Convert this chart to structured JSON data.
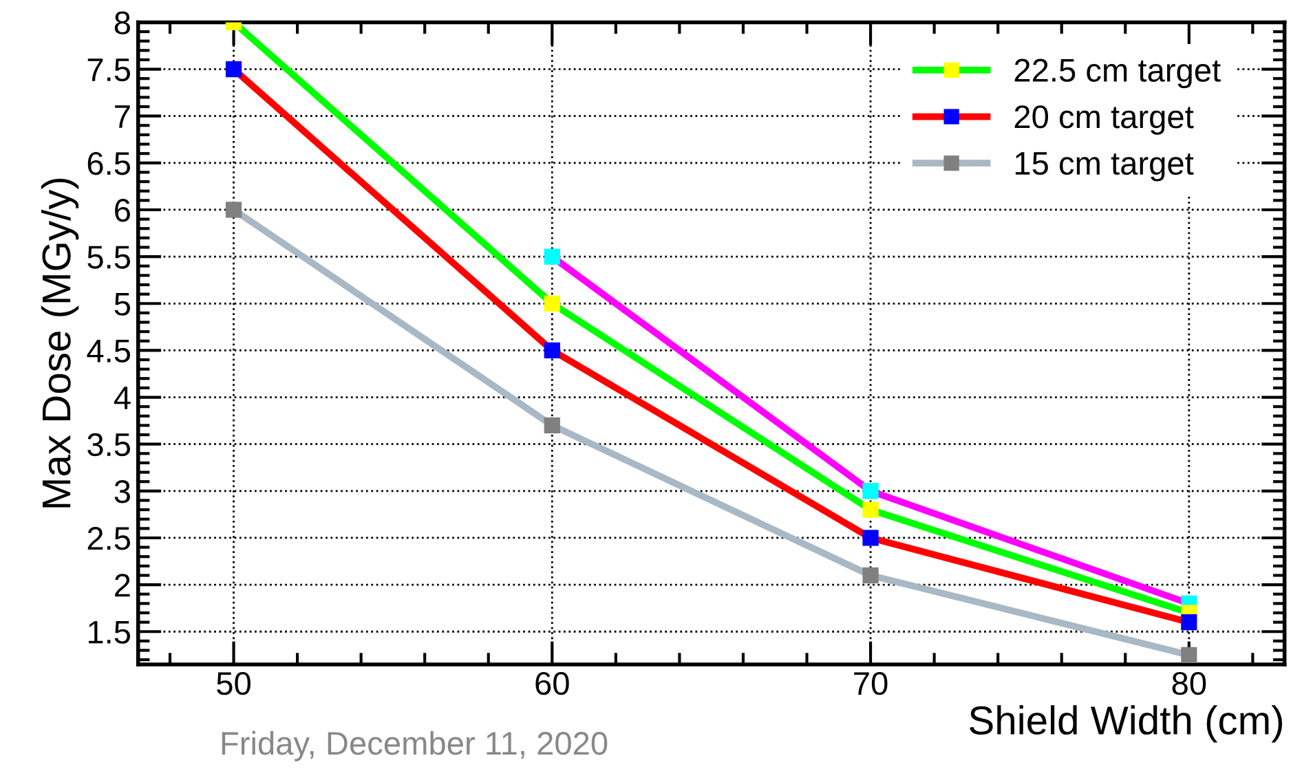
{
  "chart_data": {
    "type": "line",
    "xlabel": "Shield Width (cm)",
    "ylabel": "Max Dose (MGy/y)",
    "x": [
      50,
      60,
      70,
      80
    ],
    "series": [
      {
        "color": "#ff00ff",
        "colors": [
          "#00ffff",
          "#00ffff",
          "#00ffff",
          "#00ffff"
        ],
        "values": [
          null,
          5.5,
          3.0,
          1.8
        ]
      },
      {
        "name": "22.5 cm target",
        "color": "#00ff00",
        "colors": [
          "#ffff00",
          "#ffff00",
          "#ffff00",
          "#ffff00"
        ],
        "values": [
          8.0,
          5.0,
          2.8,
          1.7
        ]
      },
      {
        "name": "20 cm target",
        "color": "#ff0000",
        "colors": [
          "#0000ff",
          "#0000ff",
          "#0000ff",
          "#0000ff"
        ],
        "values": [
          7.5,
          4.5,
          2.5,
          1.6
        ]
      },
      {
        "name": "15 cm target",
        "color": "#a8b8c4",
        "colors": [
          "#808080",
          "#808080",
          "#808080",
          "#808080"
        ],
        "values": [
          6.0,
          3.7,
          2.1,
          1.25
        ]
      }
    ],
    "xlim": [
      47,
      83
    ],
    "xticks": [
      50,
      60,
      70,
      80
    ],
    "ylim": [
      1.15,
      8.0
    ],
    "yticks": [
      1.5,
      2,
      2.5,
      3,
      3.5,
      4,
      4.5,
      5,
      5.5,
      6,
      6.5,
      7,
      7.5,
      8
    ],
    "grid": true,
    "legend": "top right",
    "marker": "square",
    "line_style": "solid",
    "annotations": [
      "Friday, December 11, 2020"
    ]
  }
}
